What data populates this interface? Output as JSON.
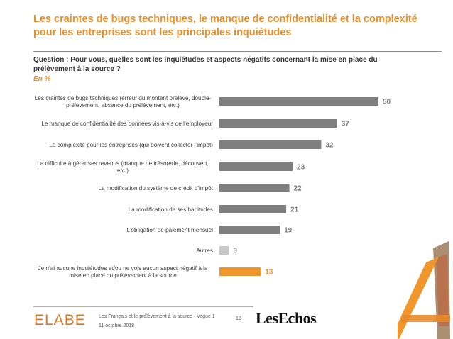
{
  "header": {
    "title": "Les craintes de bugs techniques, le manque de confidentialité et la complexité pour les entreprises sont les principales inquiétudes",
    "question": "Question : Pour vous, quelles sont les inquiétudes et aspects négatifs concernant la mise en place du prélèvement à la source ?",
    "unit": "En %"
  },
  "chart_data": {
    "type": "bar",
    "orientation": "horizontal",
    "categories": [
      "Les craintes de bugs techniques (erreur du montant prélevé, double-prélèvement, absence du prélèvement, etc.)",
      "Le manque de confidentialité des données vis-à-vis de l’employeur",
      "La complexité pour les entreprises (qui doivent collecter l’impôt)",
      "La difficulté à gérer ses revenus (manque de trésorerie, découvert, etc.)",
      "La modification du système de crédit d’impôt",
      "La modification de ses habitudes",
      "L’obligation de paiement mensuel",
      "Autres",
      "Je n’ai aucune inquiétudes et/ou ne vois aucun aspect négatif à la mise en place du prélèvement à la source"
    ],
    "category_lines": [
      [
        "Les craintes de bugs techniques (erreur du montant prélevé, double-",
        "prélèvement, absence du prélèvement, etc.)"
      ],
      [
        "Le manque de confidentialité des données vis-à-vis de l’employeur"
      ],
      [
        "La complexité pour les entreprises (qui doivent collecter l’impôt)"
      ],
      [
        "La difficulté à gérer ses revenus (manque de trésorerie, découvert,",
        "etc.)"
      ],
      [
        "La modification du système de crédit d’impôt"
      ],
      [
        "La modification de ses habitudes"
      ],
      [
        "L’obligation de paiement mensuel"
      ],
      [
        "Autres"
      ],
      [
        "Je n’ai aucune inquiétudes et/ou ne vois aucun aspect négatif à la",
        "mise en place du prélèvement à la source"
      ]
    ],
    "values": [
      50,
      37,
      32,
      23,
      22,
      21,
      19,
      3,
      13
    ],
    "value_labels": [
      "50",
      "37",
      "32",
      "23",
      "22",
      "21",
      "19",
      "3",
      "13"
    ],
    "bar_colors": [
      "#7f7f7f",
      "#7f7f7f",
      "#7f7f7f",
      "#7f7f7f",
      "#7f7f7f",
      "#7f7f7f",
      "#7f7f7f",
      "#c8c8c8",
      "#f0962d"
    ],
    "label_colors": [
      "#7a7a7a",
      "#7a7a7a",
      "#7a7a7a",
      "#7a7a7a",
      "#7a7a7a",
      "#7a7a7a",
      "#7a7a7a",
      "#9a9a9a",
      "#f0962d"
    ],
    "xlim": [
      0,
      55
    ],
    "grid": false,
    "legend": "none"
  },
  "footer": {
    "logo_elabe": "ELABE",
    "source": "Les Français et le prélèvement à la source - Vague 1",
    "date": "11 octobre 2018",
    "page_number": "18",
    "logo_lesechos": "LesEchos"
  },
  "colors": {
    "accent_orange": "#e98f2c",
    "bar_grey": "#7f7f7f",
    "bar_light_grey": "#c8c8c8",
    "bar_orange": "#f0962d",
    "deco_orange": "#f0962d",
    "deco_brown": "#8a6a4a"
  }
}
